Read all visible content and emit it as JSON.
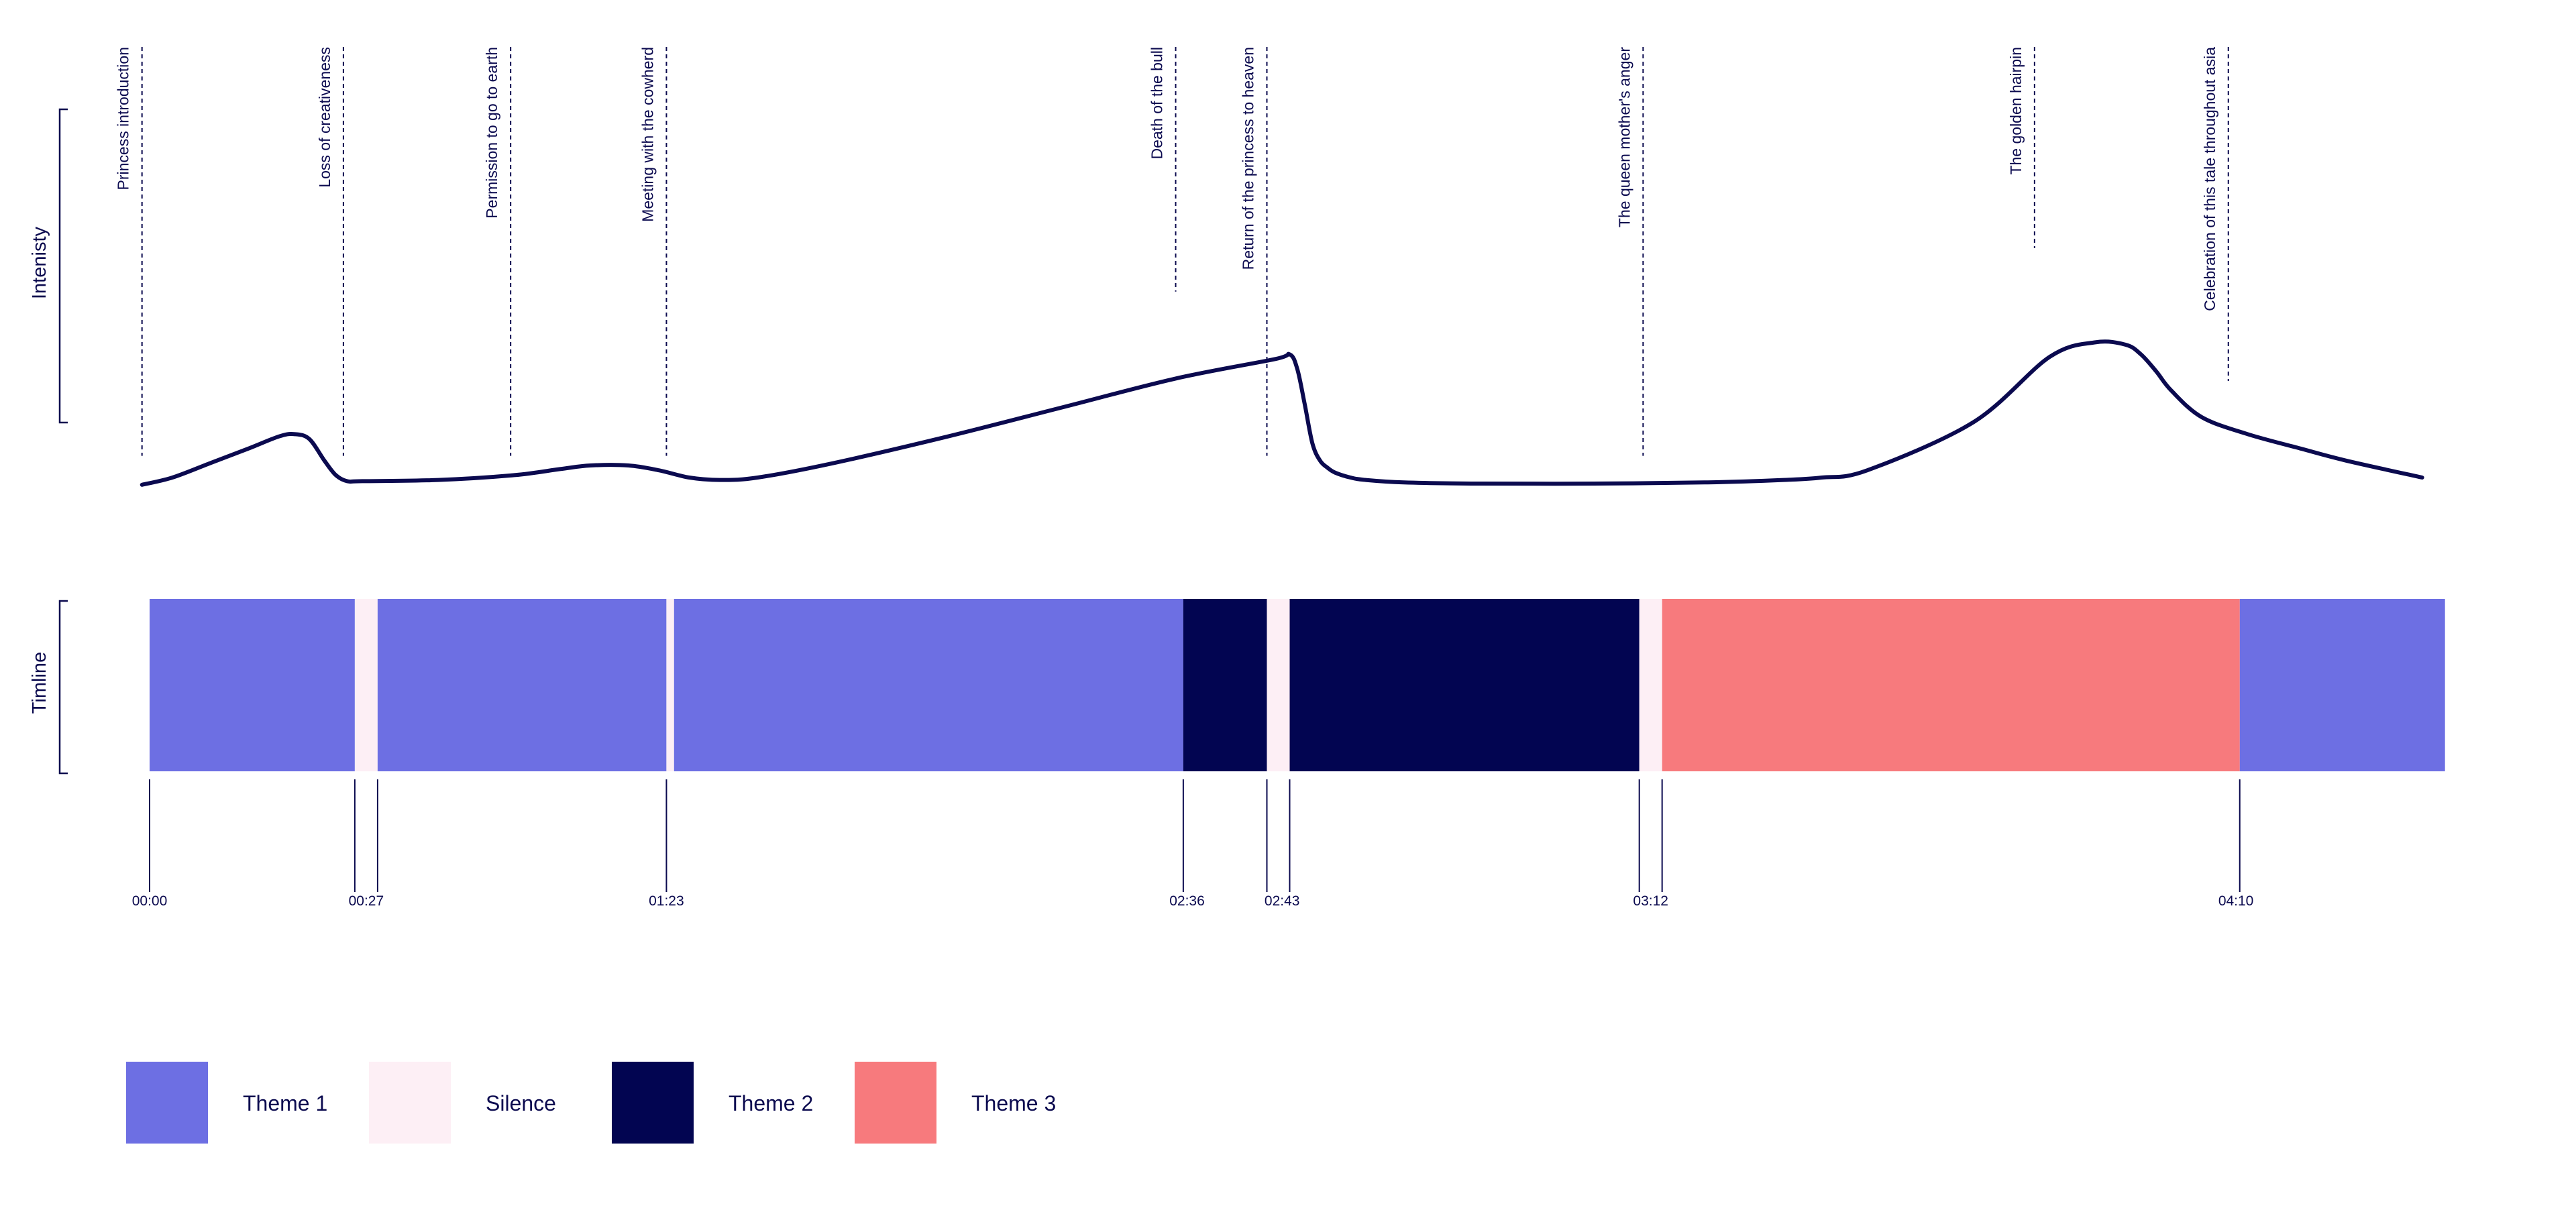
{
  "colors": {
    "ink": "#0b0a4f",
    "theme1": "#6d6fe3",
    "silence": "#fdeff5",
    "theme2": "#020551",
    "theme3": "#f77a7d"
  },
  "chart_data": [
    {
      "type": "line",
      "ylabel": "Intenisty",
      "x_unit": "seconds",
      "xlim": [
        -1,
        299
      ],
      "ylim": [
        0,
        100
      ],
      "curve": {
        "x": [
          -1,
          3,
          8,
          13,
          17,
          19,
          21,
          23,
          24.5,
          26,
          28,
          38,
          48,
          54,
          58,
          63,
          67,
          71,
          75,
          80,
          90,
          105,
          120,
          135,
          148,
          150,
          151,
          152,
          153,
          154,
          155,
          156,
          158,
          160,
          165,
          175,
          190,
          205,
          215,
          220,
          226,
          240,
          250,
          256,
          260,
          262,
          264,
          266,
          270,
          276,
          283,
          289,
          299
        ],
        "y": [
          2,
          5,
          11,
          17,
          22,
          23,
          21,
          12,
          6,
          3.5,
          3.5,
          4,
          6,
          8.5,
          10,
          10,
          8,
          5,
          4,
          5,
          11,
          22,
          34,
          46,
          54,
          56,
          50,
          35,
          19,
          12,
          9,
          7,
          5,
          4,
          3,
          2.5,
          2.5,
          3,
          4,
          5,
          8,
          28,
          55,
          61,
          60,
          56,
          49,
          41,
          30,
          23,
          17,
          12,
          5
        ]
      },
      "annotations": [
        {
          "label": "Princess introduction",
          "x": -1,
          "y": 14
        },
        {
          "label": "Loss of creativeness",
          "x": 25.5,
          "y": 14
        },
        {
          "label": "Permission to go to earth",
          "x": 47.5,
          "y": 14
        },
        {
          "label": "Meeting with the cowherd",
          "x": 68,
          "y": 14
        },
        {
          "label": "Death of the bull",
          "x": 135,
          "y": 82
        },
        {
          "label": "Return of the princess to heaven",
          "x": 147,
          "y": 14
        },
        {
          "label": "The queen mother's anger",
          "x": 196.5,
          "y": 14
        },
        {
          "label": "The golden hairpin",
          "x": 248,
          "y": 100
        },
        {
          "label": "Celebration of this tale throughout asia",
          "x": 273.5,
          "y": 45
        }
      ]
    },
    {
      "type": "timeline",
      "ylabel": "Timline",
      "segments": [
        {
          "theme": "Theme 1",
          "start": 0,
          "end": 27
        },
        {
          "theme": "Silence",
          "start": 27,
          "end": 30
        },
        {
          "theme": "Theme 1",
          "start": 30,
          "end": 68
        },
        {
          "theme": "Silence",
          "start": 68,
          "end": 69
        },
        {
          "theme": "Theme 1",
          "start": 69,
          "end": 136
        },
        {
          "theme": "Theme 2",
          "start": 136,
          "end": 147
        },
        {
          "theme": "Silence",
          "start": 147,
          "end": 150
        },
        {
          "theme": "Theme 2",
          "start": 150,
          "end": 196
        },
        {
          "theme": "Silence",
          "start": 196,
          "end": 199
        },
        {
          "theme": "Theme 3",
          "start": 199,
          "end": 275
        },
        {
          "theme": "Theme 1",
          "start": 275,
          "end": 302
        }
      ],
      "tick_marks": [
        0,
        27,
        30,
        68,
        136,
        147,
        150,
        196,
        199,
        275
      ],
      "tick_labels": [
        {
          "label": "00:00",
          "x": 0
        },
        {
          "label": "00:27",
          "x": 28.5
        },
        {
          "label": "01:23",
          "x": 68
        },
        {
          "label": "02:36",
          "x": 136.5
        },
        {
          "label": "02:43",
          "x": 149
        },
        {
          "label": "03:12",
          "x": 197.5
        },
        {
          "label": "04:10",
          "x": 274.5
        }
      ]
    }
  ],
  "legend": [
    {
      "label": "Theme 1",
      "color": "#6d6fe3"
    },
    {
      "label": "Silence",
      "color": "#fdeff5"
    },
    {
      "label": "Theme 2",
      "color": "#020551"
    },
    {
      "label": "Theme 3",
      "color": "#f77a7d"
    }
  ]
}
